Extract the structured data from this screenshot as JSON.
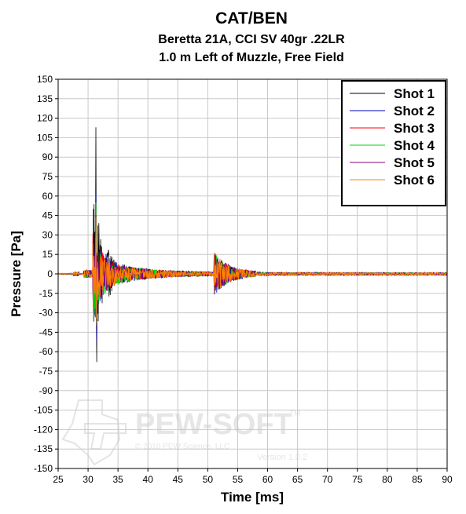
{
  "chart_data": {
    "type": "line",
    "title": "CAT/BEN",
    "subtitle_lines": [
      "Beretta 21A, CCI SV 40gr .22LR",
      "1.0 m Left of Muzzle, Free Field"
    ],
    "xlabel": "Time [ms]",
    "ylabel": "Pressure [Pa]",
    "xlim": [
      25,
      90
    ],
    "ylim": [
      -150,
      150
    ],
    "xticks": [
      25,
      30,
      35,
      40,
      45,
      50,
      55,
      60,
      65,
      70,
      75,
      80,
      85,
      90
    ],
    "yticks": [
      150,
      135,
      120,
      105,
      90,
      75,
      60,
      45,
      30,
      15,
      0,
      -15,
      -30,
      -45,
      -60,
      -75,
      -90,
      -105,
      -120,
      -135,
      -150
    ],
    "grid": true,
    "legend_position": "top-right",
    "series": [
      {
        "name": "Shot 1",
        "color": "#000000",
        "peak_max": 113,
        "peak_min": -68
      },
      {
        "name": "Shot 2",
        "color": "#0000c0",
        "peak_max": 62,
        "peak_min": -52
      },
      {
        "name": "Shot 3",
        "color": "#ff0000",
        "peak_max": 48,
        "peak_min": -40
      },
      {
        "name": "Shot 4",
        "color": "#00d000",
        "peak_max": 55,
        "peak_min": -38
      },
      {
        "name": "Shot 5",
        "color": "#800080",
        "peak_max": 45,
        "peak_min": -36
      },
      {
        "name": "Shot 6",
        "color": "#ff8000",
        "peak_max": 44,
        "peak_min": -35
      }
    ],
    "watermark": {
      "brand": "PEW-SOFT",
      "tm": "TM",
      "copyright": "© 2010 PEW Science, LLC",
      "version": "Version 1.0.2"
    }
  }
}
